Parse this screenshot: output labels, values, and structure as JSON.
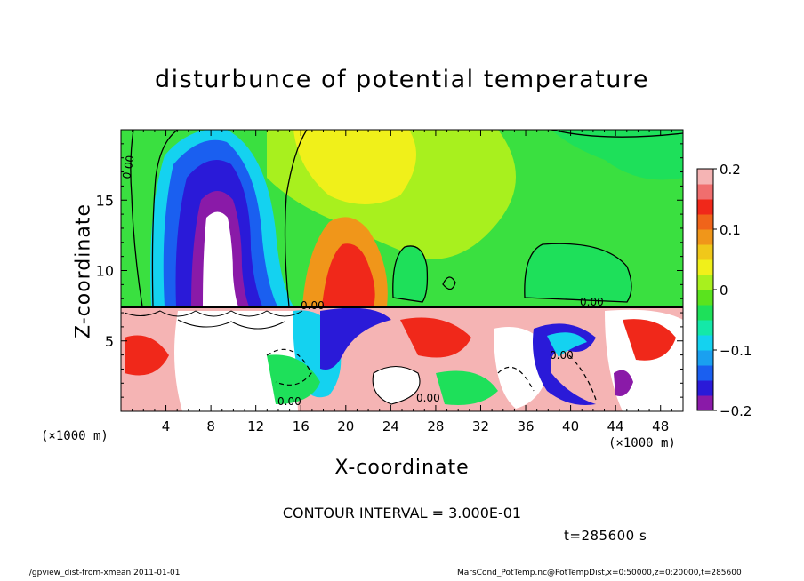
{
  "chart_data": {
    "type": "heatmap",
    "title": "disturbunce of potential temperature",
    "xlabel": "X-coordinate",
    "ylabel": "Z-coordinate",
    "x_unit_left": "(×1000 m)",
    "x_unit_right": "(×1000 m)",
    "xlim": [
      0,
      50
    ],
    "ylim": [
      0,
      20
    ],
    "x_ticks": [
      "4",
      "8",
      "12",
      "16",
      "20",
      "24",
      "28",
      "32",
      "36",
      "40",
      "44",
      "48"
    ],
    "x_tick_values": [
      4,
      8,
      12,
      16,
      20,
      24,
      28,
      32,
      36,
      40,
      44,
      48
    ],
    "y_ticks": [
      "5",
      "10",
      "15"
    ],
    "y_tick_values": [
      5,
      10,
      15
    ],
    "colorbar": {
      "range": [
        -0.2,
        0.2
      ],
      "tick_labels": [
        "0.2",
        "0.1",
        "0",
        "−0.1",
        "−0.2"
      ],
      "tick_values": [
        0.2,
        0.1,
        0,
        -0.1,
        -0.2
      ],
      "colors": [
        "#8a1aa8",
        "#2a1ad8",
        "#1a5ff0",
        "#1aa0f0",
        "#14d2f0",
        "#14e8a8",
        "#1ee05a",
        "#5ae31e",
        "#a8f01e",
        "#f0f01a",
        "#f0c81a",
        "#f0961a",
        "#f0641a",
        "#f0281a",
        "#f06e6e",
        "#f5b4b4"
      ]
    },
    "contour_labels": [
      "0.00",
      "0.00",
      "0.00",
      "0.00",
      "0.00",
      "0.00"
    ],
    "annotation_contour": "CONTOUR INTERVAL = 3.000E-01",
    "annotation_time": "t=285600 s"
  },
  "footer": {
    "left": "./gpview_dist-from-xmean  2011-01-01",
    "right": "MarsCond_PotTemp.nc@PotTempDist,x=0:50000,z=0:20000,t=285600"
  }
}
